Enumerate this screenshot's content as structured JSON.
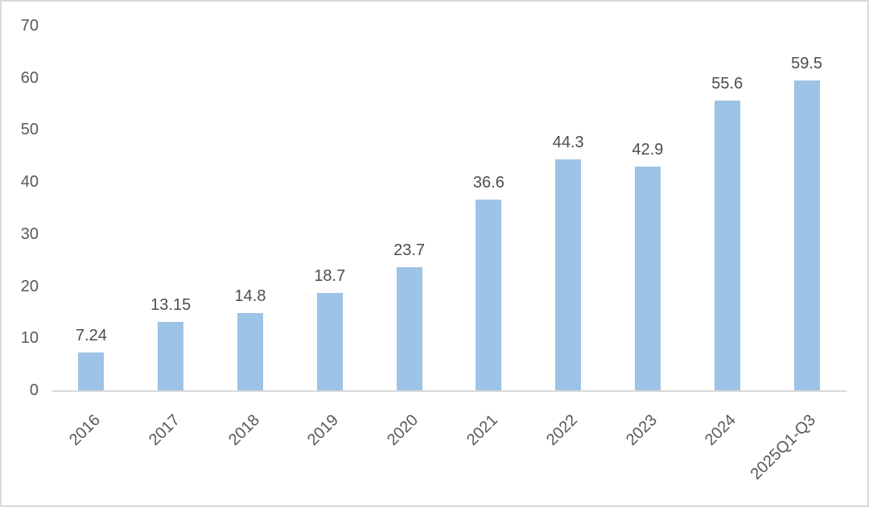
{
  "chart_data": {
    "type": "bar",
    "title": "",
    "xlabel": "",
    "ylabel": "",
    "categories": [
      "2016",
      "2017",
      "2018",
      "2019",
      "2020",
      "2021",
      "2022",
      "2023",
      "2024",
      "2025Q1-Q3"
    ],
    "values": [
      7.24,
      13.15,
      14.8,
      18.7,
      23.7,
      36.6,
      44.3,
      42.9,
      55.6,
      59.5
    ],
    "value_labels": [
      "7.24",
      "13.15",
      "14.8",
      "18.7",
      "23.7",
      "36.6",
      "44.3",
      "42.9",
      "55.6",
      "59.5"
    ],
    "y_ticks": [
      0,
      10,
      20,
      30,
      40,
      50,
      60,
      70
    ],
    "ylim": [
      0,
      70
    ],
    "grid": false,
    "legend": false,
    "x_tick_rotation_deg": -45,
    "colors": {
      "bar_fill": "#9DC3E6",
      "axis_line": "#D9D9D9",
      "tick_label": "#595959",
      "value_label": "#4D4D4D",
      "frame_border": "#D9D9D9",
      "background": "#FFFFFF"
    }
  }
}
